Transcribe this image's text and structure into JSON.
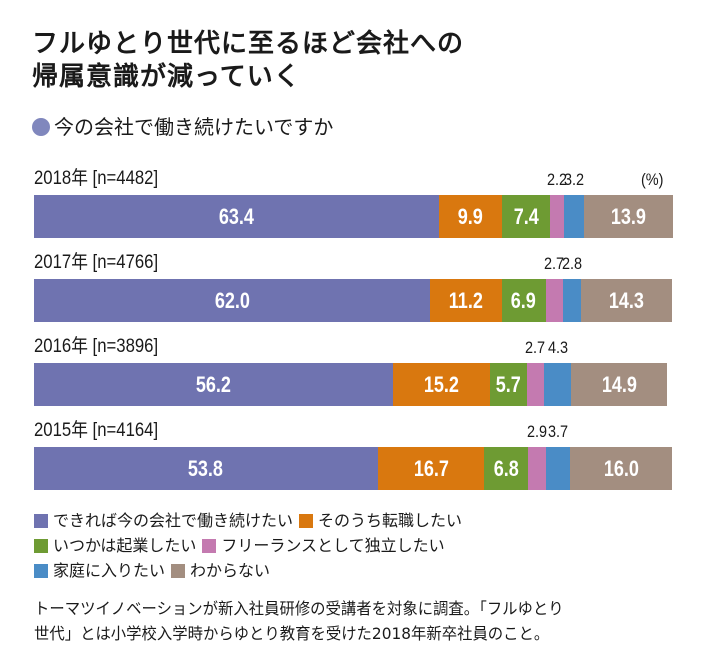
{
  "header": {
    "title_line1": "フルゆとり世代に至るほど会社への",
    "title_line2": "帰属意識が減っていく",
    "subtitle": "今の会社で働き続けたいですか"
  },
  "chart_data": {
    "type": "bar",
    "orientation": "horizontal-stacked-100",
    "title": "フルゆとり世代に至るほど会社への帰属意識が減っていく",
    "subtitle": "今の会社で働き続けたいですか",
    "unit": "(%)",
    "categories": [
      "2018年 [n=4482]",
      "2017年 [n=4766]",
      "2016年 [n=3896]",
      "2015年 [n=4164]"
    ],
    "series": [
      {
        "name": "できれば今の会社で働き続けたい",
        "color": "#6f73b0",
        "values": [
          63.4,
          62.0,
          56.2,
          53.8
        ]
      },
      {
        "name": "そのうち転職したい",
        "color": "#d9780f",
        "values": [
          9.9,
          11.2,
          15.2,
          16.7
        ]
      },
      {
        "name": "いつかは起業したい",
        "color": "#6e9b33",
        "values": [
          7.4,
          6.9,
          5.7,
          6.8
        ]
      },
      {
        "name": "フリーランスとして独立したい",
        "color": "#c47ab0",
        "values": [
          2.2,
          2.7,
          2.7,
          2.9
        ]
      },
      {
        "name": "家庭に入りたい",
        "color": "#4a8cc6",
        "values": [
          3.2,
          2.8,
          4.3,
          3.7
        ]
      },
      {
        "name": "わからない",
        "color": "#a38e80",
        "values": [
          13.9,
          14.3,
          14.9,
          16.0
        ]
      }
    ],
    "value_labels": [
      [
        "63.4",
        "9.9",
        "7.4",
        "2.2",
        "3.2",
        "13.9"
      ],
      [
        "62.0",
        "11.2",
        "6.9",
        "2.7",
        "2.8",
        "14.3"
      ],
      [
        "56.2",
        "15.2",
        "5.7",
        "2.7",
        "4.3",
        "14.9"
      ],
      [
        "53.8",
        "16.7",
        "6.8",
        "2.9",
        "3.7",
        "16.0"
      ]
    ],
    "xlim": [
      0,
      100
    ],
    "grid": false,
    "legend_position": "bottom"
  },
  "legend": {
    "lines": [
      [
        0,
        1
      ],
      [
        2,
        3
      ],
      [
        4,
        5
      ]
    ]
  },
  "note": {
    "line1": "トーマツイノベーションが新入社員研修の受講者を対象に調査。「フルゆとり",
    "line2": "世代」とは小学校入学時からゆとり教育を受けた2018年新卒社員のこと。"
  }
}
